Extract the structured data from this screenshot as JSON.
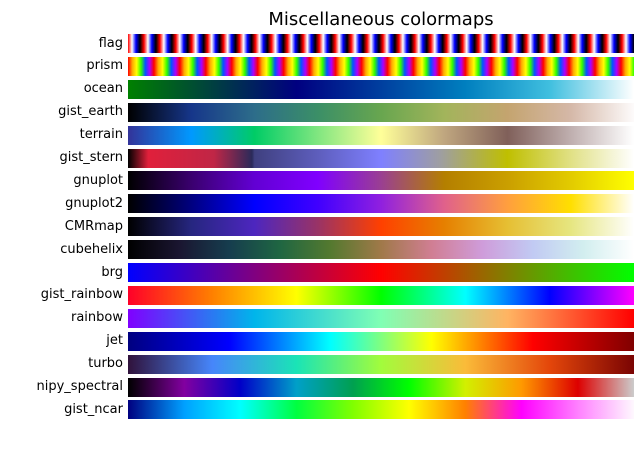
{
  "chart_data": {
    "type": "colormap_swatches",
    "title": "Miscellaneous colormaps",
    "grid": false,
    "axes_visible": false,
    "rows": [
      {
        "name": "flag",
        "stops": [
          "#ff0000",
          "#ffffff",
          "#0000ff",
          "#000000",
          "#ff0000",
          "#ffffff",
          "#0000ff",
          "#000000",
          "#ff0000",
          "#ffffff",
          "#0000ff",
          "#000000",
          "#ff0000",
          "#ffffff",
          "#0000ff",
          "#000000",
          "#ff0000",
          "#ffffff",
          "#0000ff",
          "#000000",
          "#ff0000",
          "#ffffff",
          "#0000ff",
          "#000000",
          "#ff0000",
          "#ffffff",
          "#0000ff",
          "#000000",
          "#ff0000",
          "#ffffff",
          "#0000ff",
          "#000000",
          "#ff0000",
          "#ffffff",
          "#0000ff",
          "#000000",
          "#ff0000",
          "#ffffff",
          "#0000ff",
          "#000000",
          "#ff0000",
          "#ffffff",
          "#0000ff",
          "#000000",
          "#ff0000",
          "#ffffff",
          "#0000ff",
          "#000000",
          "#ff0000",
          "#ffffff",
          "#0000ff",
          "#000000",
          "#ff0000",
          "#ffffff",
          "#0000ff",
          "#000000",
          "#ff0000",
          "#ffffff",
          "#0000ff",
          "#000000",
          "#ff0000",
          "#ffffff",
          "#0000ff",
          "#000000",
          "#ff0000",
          "#ffffff",
          "#0000ff",
          "#000000",
          "#ff0000",
          "#ffffff",
          "#0000ff",
          "#000000",
          "#ff0000",
          "#ffffff",
          "#0000ff",
          "#000000",
          "#ff0000",
          "#ffffff",
          "#0000ff",
          "#000000",
          "#ff0000",
          "#ffffff",
          "#0000ff",
          "#000000",
          "#ff0000",
          "#ffffff",
          "#0000ff",
          "#000000",
          "#ff0000",
          "#ffffff",
          "#0000ff",
          "#000000",
          "#ff0000",
          "#ffffff",
          "#0000ff",
          "#000000",
          "#ff0000",
          "#ffffff",
          "#0000ff",
          "#000000",
          "#ff0000",
          "#ffffff",
          "#0000ff",
          "#000000",
          "#ff0000",
          "#ffffff",
          "#0000ff",
          "#000000",
          "#ff0000",
          "#ffffff",
          "#0000ff",
          "#000000",
          "#ff0000",
          "#ffffff",
          "#0000ff",
          "#000000",
          "#ff0000",
          "#ffffff",
          "#0000ff",
          "#000000",
          "#ff0000",
          "#ffffff",
          "#0000ff",
          "#000000",
          "#ff0000",
          "#ffffff",
          "#0000ff",
          "#000000"
        ]
      },
      {
        "name": "prism",
        "stops": [
          "#ff0000",
          "#ffaa00",
          "#ffff00",
          "#33ff00",
          "#0055ff",
          "#aa00ff",
          "#ff0000",
          "#ffaa00",
          "#ffff00",
          "#33ff00",
          "#0055ff",
          "#aa00ff",
          "#ff0000",
          "#ffaa00",
          "#ffff00",
          "#33ff00",
          "#0055ff",
          "#aa00ff",
          "#ff0000",
          "#ffaa00",
          "#ffff00",
          "#33ff00",
          "#0055ff",
          "#aa00ff",
          "#ff0000",
          "#ffaa00",
          "#ffff00",
          "#33ff00",
          "#0055ff",
          "#aa00ff",
          "#ff0000",
          "#ffaa00",
          "#ffff00",
          "#33ff00",
          "#0055ff",
          "#aa00ff",
          "#ff0000",
          "#ffaa00",
          "#ffff00",
          "#33ff00",
          "#0055ff",
          "#aa00ff",
          "#ff0000",
          "#ffaa00",
          "#ffff00",
          "#33ff00",
          "#0055ff",
          "#aa00ff",
          "#ff0000",
          "#ffaa00",
          "#ffff00",
          "#33ff00",
          "#0055ff",
          "#aa00ff",
          "#ff0000",
          "#ffaa00",
          "#ffff00",
          "#33ff00",
          "#0055ff",
          "#aa00ff",
          "#ff0000",
          "#ffaa00",
          "#ffff00",
          "#33ff00",
          "#0055ff",
          "#aa00ff",
          "#ff0000",
          "#ffaa00",
          "#ffff00",
          "#33ff00",
          "#0055ff",
          "#aa00ff",
          "#ff0000",
          "#ffaa00",
          "#ffff00",
          "#33ff00",
          "#0055ff",
          "#aa00ff",
          "#ff0000",
          "#ffaa00",
          "#ffff00",
          "#33ff00",
          "#0055ff",
          "#aa00ff",
          "#ff0000",
          "#ffaa00",
          "#ffff00",
          "#33ff00",
          "#0055ff",
          "#aa00ff",
          "#ff0000",
          "#ffaa00",
          "#ffff00",
          "#33ff00",
          "#0055ff",
          "#aa00ff",
          "#ff0000",
          "#ffaa00",
          "#ffff00",
          "#33ff00",
          "#0055ff",
          "#aa00ff",
          "#ff0000",
          "#ffaa00",
          "#ffff00",
          "#33ff00",
          "#0055ff",
          "#aa00ff",
          "#ff0000",
          "#ffaa00",
          "#ffff00",
          "#33ff00",
          "#0055ff",
          "#aa00ff",
          "#ff0000",
          "#ffaa00",
          "#ffff00",
          "#33ff00"
        ]
      },
      {
        "name": "ocean",
        "stops": [
          "#008000",
          "#004040",
          "#000080",
          "#003f9f",
          "#007fbf",
          "#40bfdf",
          "#ffffff"
        ]
      },
      {
        "name": "gist_earth",
        "stops": [
          "#000000",
          "#16368a",
          "#2d6d8a",
          "#3b8f67",
          "#68a64f",
          "#a2b45b",
          "#c4a46f",
          "#d5b8a8",
          "#fdfbfb"
        ]
      },
      {
        "name": "terrain",
        "stops": [
          "#333399",
          "#0099ff",
          "#00cc66",
          "#80e680",
          "#ffff99",
          "#bfa67f",
          "#80605a",
          "#bfafaf",
          "#ffffff"
        ]
      },
      {
        "name": "gist_stern",
        "stops": [
          "#000000",
          "#e0203b",
          "#3f407f",
          "#5f5fbf",
          "#7f80ff",
          "#9f9f9f",
          "#bfbf00",
          "#dfdf80",
          "#ffffff"
        ]
      },
      {
        "name": "gnuplot",
        "stops": [
          "#000000",
          "#3a006e",
          "#6200d3",
          "#8000ff",
          "#9a3f92",
          "#b47f00",
          "#ca9f00",
          "#e2cb00",
          "#ffff00"
        ]
      },
      {
        "name": "gnuplot2",
        "stops": [
          "#000000",
          "#000080",
          "#0000ff",
          "#4000ff",
          "#9020df",
          "#e0618b",
          "#ff9f3e",
          "#ffdf00",
          "#ffffff"
        ]
      },
      {
        "name": "CMRmap",
        "stops": [
          "#000000",
          "#262680",
          "#4d26bf",
          "#993366",
          "#ff4000",
          "#e68000",
          "#e6bf33",
          "#e6e680",
          "#ffffff"
        ]
      },
      {
        "name": "cubehelix",
        "stops": [
          "#000000",
          "#1a1530",
          "#163d4e",
          "#1f6642",
          "#54792f",
          "#a07949",
          "#d07e93",
          "#cf9cda",
          "#c1caf3",
          "#d2eeef",
          "#ffffff"
        ]
      },
      {
        "name": "brg",
        "stops": [
          "#0000ff",
          "#800080",
          "#ff0000",
          "#808000",
          "#00ff00"
        ]
      },
      {
        "name": "gist_rainbow",
        "stops": [
          "#ff0029",
          "#ff8000",
          "#ffff00",
          "#00ff00",
          "#00ffff",
          "#0000ff",
          "#ff00ff"
        ]
      },
      {
        "name": "rainbow",
        "stops": [
          "#8000ff",
          "#00b5eb",
          "#80ffb4",
          "#ffb462",
          "#ff0000"
        ]
      },
      {
        "name": "jet",
        "stops": [
          "#000080",
          "#0000ff",
          "#00ffff",
          "#ffff00",
          "#ff0000",
          "#800000"
        ]
      },
      {
        "name": "turbo",
        "stops": [
          "#30123b",
          "#4686fb",
          "#1ae4b6",
          "#a2fc3c",
          "#fabb39",
          "#e4460a",
          "#7a0403"
        ]
      },
      {
        "name": "nipy_spectral",
        "stops": [
          "#000000",
          "#8200a0",
          "#0000c8",
          "#00a0c8",
          "#00a050",
          "#00ff00",
          "#d2f000",
          "#ff9900",
          "#dd0000",
          "#cccccc"
        ]
      },
      {
        "name": "gist_ncar",
        "stops": [
          "#000080",
          "#00a0ff",
          "#00ffff",
          "#00ff40",
          "#80ff00",
          "#ffff00",
          "#ff8000",
          "#ff00ff",
          "#ff80ff",
          "#fef8fe"
        ]
      }
    ]
  }
}
